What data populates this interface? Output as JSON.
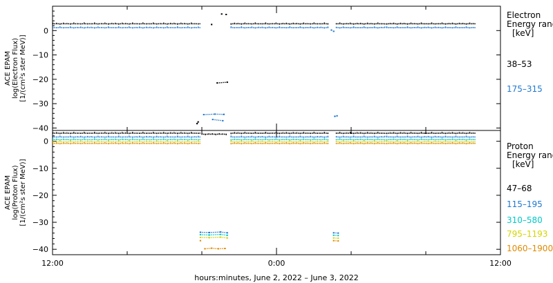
{
  "chart_data": [
    {
      "type": "scatter",
      "panel": "electron",
      "ylabel_lines": [
        "ACE EPAM",
        "log(Electron Flux)",
        "[1/(cm²s ster MeV)]"
      ],
      "ylim": [
        -41,
        10
      ],
      "yticks": [
        0,
        -10,
        -20,
        -30,
        -40
      ],
      "ytick_labels": [
        "0",
        "−10",
        "−20",
        "−30",
        "−40"
      ],
      "legend_title_lines": [
        "Electron",
        "Energy ranges",
        "[keV]"
      ],
      "series": [
        {
          "name": "38–53",
          "color": "#000000",
          "segments": [
            {
              "x": [
                0,
                13.2
              ],
              "y": 2.8
            },
            {
              "x": [
                15.9,
                24.7
              ],
              "y": 2.8
            },
            {
              "x": [
                25.3,
                29.7
              ],
              "y": 2.8
            },
            {
              "x": [
                29.8,
                37.8
              ],
              "y": 2.8
            }
          ],
          "extra_points": [
            [
              15.1,
              6.8
            ],
            [
              15.5,
              6.6
            ],
            [
              14.2,
              2.5
            ],
            [
              14.7,
              -21.5
            ],
            [
              15.6,
              -21.2
            ],
            [
              12.9,
              -38.2
            ],
            [
              13.0,
              -37.5
            ]
          ]
        },
        {
          "name": "175–315",
          "color": "#1f77d0",
          "segments": [
            {
              "x": [
                0,
                13.2
              ],
              "y": 1.2
            },
            {
              "x": [
                15.9,
                24.7
              ],
              "y": 1.2
            },
            {
              "x": [
                25.3,
                29.7
              ],
              "y": 1.2
            },
            {
              "x": [
                29.8,
                37.8
              ],
              "y": 1.2
            }
          ],
          "extra_points": [
            [
              13.5,
              -34.5
            ],
            [
              14.5,
              -34.3
            ],
            [
              15.3,
              -34.4
            ],
            [
              25.2,
              -35.2
            ],
            [
              25.4,
              -35.0
            ],
            [
              24.9,
              0.2
            ],
            [
              25.1,
              -0.3
            ],
            [
              14.3,
              -36.5
            ],
            [
              15.2,
              -37.0
            ]
          ]
        }
      ]
    },
    {
      "type": "scatter",
      "panel": "proton",
      "ylabel_lines": [
        "ACE EPAM",
        "log(Proton Flux)",
        "[1/(cm²s ster MeV)]"
      ],
      "ylim": [
        -42,
        4
      ],
      "yticks": [
        0,
        -10,
        -20,
        -30,
        -40
      ],
      "ytick_labels": [
        "0",
        "−10",
        "−20",
        "−30",
        "−40"
      ],
      "legend_title_lines": [
        "Proton",
        "Energy ranges",
        "[keV]"
      ],
      "series": [
        {
          "name": "47–68",
          "color": "#000000",
          "segments": [
            {
              "x": [
                0,
                13.2
              ],
              "y": 3.0
            },
            {
              "x": [
                13.3,
                15.6
              ],
              "y": 2.6
            },
            {
              "x": [
                15.9,
                24.7
              ],
              "y": 3.0
            },
            {
              "x": [
                25.3,
                29.7
              ],
              "y": 3.0
            },
            {
              "x": [
                29.8,
                37.8
              ],
              "y": 3.0
            }
          ],
          "extra_points": []
        },
        {
          "name": "115–195",
          "color": "#1f77d0",
          "segments": [
            {
              "x": [
                0,
                13.2
              ],
              "y": 1.6
            },
            {
              "x": [
                15.9,
                24.7
              ],
              "y": 1.6
            },
            {
              "x": [
                25.3,
                29.7
              ],
              "y": 1.6
            },
            {
              "x": [
                29.8,
                37.8
              ],
              "y": 1.6
            }
          ],
          "extra_points": [
            [
              13.2,
              -33.7
            ],
            [
              14.0,
              -33.8
            ],
            [
              15.0,
              -33.6
            ],
            [
              15.6,
              -33.9
            ],
            [
              25.1,
              -33.9
            ],
            [
              25.5,
              -34.0
            ]
          ]
        },
        {
          "name": "310–580",
          "color": "#00c8c8",
          "segments": [
            {
              "x": [
                0,
                13.2
              ],
              "y": 0.6
            },
            {
              "x": [
                15.9,
                24.7
              ],
              "y": 0.6
            },
            {
              "x": [
                25.3,
                29.7
              ],
              "y": 0.6
            },
            {
              "x": [
                29.8,
                37.8
              ],
              "y": 0.6
            }
          ],
          "extra_points": [
            [
              13.2,
              -34.6
            ],
            [
              14.0,
              -34.7
            ],
            [
              15.0,
              -34.5
            ],
            [
              15.6,
              -34.8
            ],
            [
              25.1,
              -34.8
            ],
            [
              25.5,
              -34.9
            ]
          ]
        },
        {
          "name": "795–1193",
          "color": "#d4d400",
          "segments": [
            {
              "x": [
                0,
                13.2
              ],
              "y": -0.2
            },
            {
              "x": [
                15.9,
                24.7
              ],
              "y": -0.2
            },
            {
              "x": [
                25.3,
                29.7
              ],
              "y": -0.2
            },
            {
              "x": [
                29.8,
                37.8
              ],
              "y": -0.2
            }
          ],
          "extra_points": [
            [
              13.2,
              -35.6
            ],
            [
              14.0,
              -35.7
            ],
            [
              15.0,
              -35.5
            ],
            [
              15.6,
              -35.8
            ],
            [
              25.1,
              -35.8
            ],
            [
              25.5,
              -35.9
            ]
          ]
        },
        {
          "name": "1060–1900",
          "color": "#e08a00",
          "segments": [
            {
              "x": [
                0,
                13.2
              ],
              "y": -0.8
            },
            {
              "x": [
                15.9,
                24.7
              ],
              "y": -0.8
            },
            {
              "x": [
                25.3,
                29.7
              ],
              "y": -0.8
            },
            {
              "x": [
                29.8,
                37.8
              ],
              "y": -0.8
            }
          ],
          "extra_points": [
            [
              13.2,
              -36.8
            ],
            [
              13.6,
              -39.8
            ],
            [
              14.2,
              -39.6
            ],
            [
              14.8,
              -39.8
            ],
            [
              15.4,
              -39.7
            ],
            [
              25.1,
              -36.8
            ],
            [
              25.5,
              -36.9
            ]
          ]
        }
      ]
    }
  ],
  "x_axis": {
    "xlim": [
      0,
      40
    ],
    "xlabel": "hours:minutes, June  2, 2022 – June  3, 2022",
    "major_ticks": [
      0,
      20,
      40
    ],
    "tick_labels": [
      {
        "x": 0,
        "label": "12:00"
      },
      {
        "x": 20,
        "label": "0:00"
      },
      {
        "x": 40,
        "label": "12:00"
      }
    ],
    "minor_step": 6.6667
  }
}
